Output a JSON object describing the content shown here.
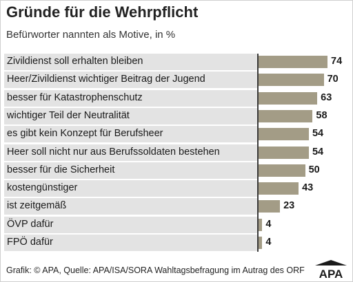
{
  "title": "Gründe für die Wehrpflicht",
  "subtitle": "Befürworter nannten als Motive, in %",
  "footer": "Grafik: © APA, Quelle: APA/ISA/SORA Wahltagsbefragung im Autrag des ORF",
  "logo_text": "APA",
  "colors": {
    "bar": "#a39c86",
    "row_background": "#e3e3e3",
    "logo": "#1a1a1a"
  },
  "chart_data": {
    "type": "bar",
    "orientation": "horizontal",
    "title": "Gründe für die Wehrpflicht",
    "subtitle": "Befürworter nannten als Motive, in %",
    "categories": [
      "Zivildienst soll erhalten bleiben",
      "Heer/Zivildienst wichtiger Beitrag der Jugend",
      "besser für Katastrophenschutz",
      "wichtiger Teil der Neutralität",
      "es gibt kein Konzept für Berufsheer",
      "Heer soll nicht nur aus Berufssoldaten bestehen",
      "besser für die Sicherheit",
      "kostengünstiger",
      "ist zeitgemäß",
      "ÖVP dafür",
      "FPÖ dafür"
    ],
    "values": [
      74,
      70,
      63,
      58,
      54,
      54,
      50,
      43,
      23,
      4,
      4
    ],
    "xlim": [
      0,
      100
    ],
    "grid": false,
    "legend": "none"
  }
}
